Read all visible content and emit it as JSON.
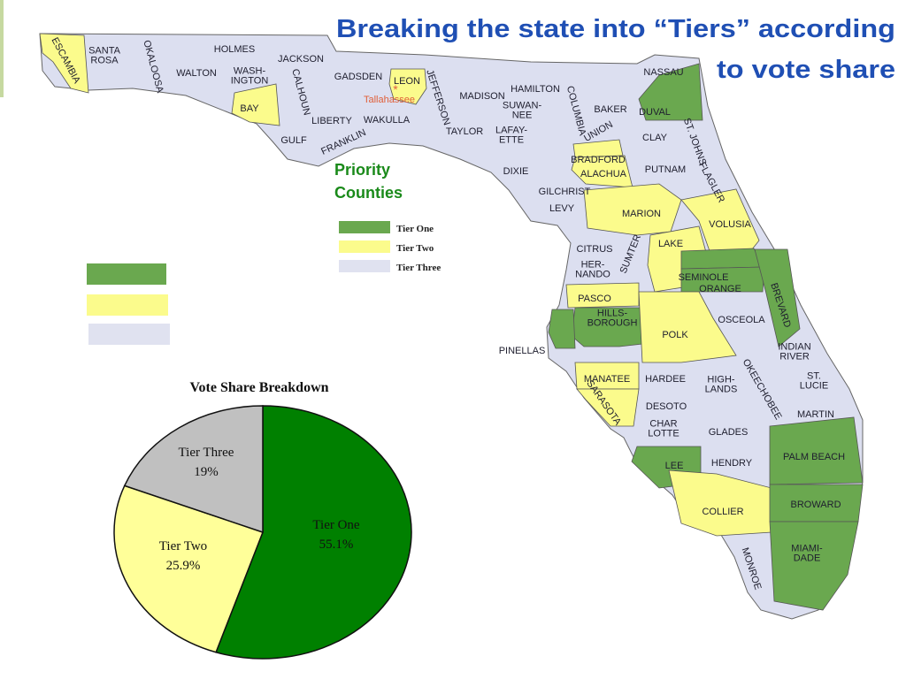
{
  "title": [
    "Breaking the state into “Tiers” according",
    "to vote share"
  ],
  "map": {
    "priority_label": [
      "Priority",
      "Counties"
    ],
    "capital": "Tallahassee",
    "legend": [
      {
        "label": "Tier One",
        "color": "#6aa84f"
      },
      {
        "label": "Tier Two",
        "color": "#fbfb8c"
      },
      {
        "label": "Tier Three",
        "color": "#e0e2f0"
      }
    ],
    "counties": [
      {
        "label": [
          "ESCAMBIA"
        ],
        "tier": 2
      },
      {
        "label": [
          "SANTA",
          "ROSA"
        ],
        "tier": 3
      },
      {
        "label": [
          "OKALOOSA"
        ],
        "tier": 3
      },
      {
        "label": [
          "WALTON"
        ],
        "tier": 3
      },
      {
        "label": [
          "HOLMES"
        ],
        "tier": 3
      },
      {
        "label": [
          "JACKSON"
        ],
        "tier": 3
      },
      {
        "label": [
          "WASH-",
          "INGTON"
        ],
        "tier": 3
      },
      {
        "label": [
          "BAY"
        ],
        "tier": 2
      },
      {
        "label": [
          "CALHOUN"
        ],
        "tier": 3
      },
      {
        "label": [
          "GADSDEN"
        ],
        "tier": 3
      },
      {
        "label": [
          "LEON"
        ],
        "tier": 2
      },
      {
        "label": [
          "LIBERTY"
        ],
        "tier": 3
      },
      {
        "label": [
          "WAKULLA"
        ],
        "tier": 3
      },
      {
        "label": [
          "GULF"
        ],
        "tier": 3
      },
      {
        "label": [
          "FRANKLIN"
        ],
        "tier": 3
      },
      {
        "label": [
          "JEFFERSON"
        ],
        "tier": 3
      },
      {
        "label": [
          "MADISON"
        ],
        "tier": 3
      },
      {
        "label": [
          "HAMILTON"
        ],
        "tier": 3
      },
      {
        "label": [
          "SUWAN-",
          "NEE"
        ],
        "tier": 3
      },
      {
        "label": [
          "TAYLOR"
        ],
        "tier": 3
      },
      {
        "label": [
          "LAFAY-",
          "ETTE"
        ],
        "tier": 3
      },
      {
        "label": [
          "COLUMBIA"
        ],
        "tier": 3
      },
      {
        "label": [
          "BAKER"
        ],
        "tier": 3
      },
      {
        "label": [
          "NASSAU"
        ],
        "tier": 3
      },
      {
        "label": [
          "DUVAL"
        ],
        "tier": 1
      },
      {
        "label": [
          "UNION"
        ],
        "tier": 3
      },
      {
        "label": [
          "CLAY"
        ],
        "tier": 3
      },
      {
        "label": [
          "ST. JOHNS"
        ],
        "tier": 3
      },
      {
        "label": [
          "BRADFORD"
        ],
        "tier": 2
      },
      {
        "label": [
          "ALACHUA"
        ],
        "tier": 2
      },
      {
        "label": [
          "PUTNAM"
        ],
        "tier": 3
      },
      {
        "label": [
          "FLAGLER"
        ],
        "tier": 3
      },
      {
        "label": [
          "DIXIE"
        ],
        "tier": 3
      },
      {
        "label": [
          "GILCHRIST"
        ],
        "tier": 3
      },
      {
        "label": [
          "LEVY"
        ],
        "tier": 3
      },
      {
        "label": [
          "MARION"
        ],
        "tier": 2
      },
      {
        "label": [
          "VOLUSIA"
        ],
        "tier": 2
      },
      {
        "label": [
          "CITRUS"
        ],
        "tier": 3
      },
      {
        "label": [
          "SUMTER"
        ],
        "tier": 3
      },
      {
        "label": [
          "LAKE"
        ],
        "tier": 2
      },
      {
        "label": [
          "HER-",
          "NANDO"
        ],
        "tier": 3
      },
      {
        "label": [
          "SEMINOLE"
        ],
        "tier": 1
      },
      {
        "label": [
          "ORANGE"
        ],
        "tier": 1
      },
      {
        "label": [
          "BREVARD"
        ],
        "tier": 1
      },
      {
        "label": [
          "PASCO"
        ],
        "tier": 2
      },
      {
        "label": [
          "HILLS-",
          "BOROUGH"
        ],
        "tier": 1
      },
      {
        "label": [
          "PINELLAS"
        ],
        "tier": 1
      },
      {
        "label": [
          "POLK"
        ],
        "tier": 2
      },
      {
        "label": [
          "OSCEOLA"
        ],
        "tier": 3
      },
      {
        "label": [
          "INDIAN",
          "RIVER"
        ],
        "tier": 3
      },
      {
        "label": [
          "MANATEE"
        ],
        "tier": 2
      },
      {
        "label": [
          "SARASOTA"
        ],
        "tier": 2
      },
      {
        "label": [
          "HARDEE"
        ],
        "tier": 3
      },
      {
        "label": [
          "HIGH-",
          "LANDS"
        ],
        "tier": 3
      },
      {
        "label": [
          "OKEECHOBEE"
        ],
        "tier": 3
      },
      {
        "label": [
          "ST.",
          "LUCIE"
        ],
        "tier": 3
      },
      {
        "label": [
          "DESOTO"
        ],
        "tier": 3
      },
      {
        "label": [
          "MARTIN"
        ],
        "tier": 3
      },
      {
        "label": [
          "CHAR",
          "LOTTE"
        ],
        "tier": 3
      },
      {
        "label": [
          "GLADES"
        ],
        "tier": 3
      },
      {
        "label": [
          "LEE"
        ],
        "tier": 1
      },
      {
        "label": [
          "HENDRY"
        ],
        "tier": 3
      },
      {
        "label": [
          "PALM BEACH"
        ],
        "tier": 1
      },
      {
        "label": [
          "COLLIER"
        ],
        "tier": 2
      },
      {
        "label": [
          "BROWARD"
        ],
        "tier": 1
      },
      {
        "label": [
          "MIAMI-",
          "DADE"
        ],
        "tier": 1
      },
      {
        "label": [
          "MONROE"
        ],
        "tier": 3
      }
    ]
  },
  "chart_data": {
    "type": "pie",
    "title": "Vote Share Breakdown",
    "categories": [
      "Tier One",
      "Tier Two",
      "Tier Three"
    ],
    "values": [
      55.1,
      25.9,
      19
    ],
    "value_labels": [
      "55.1%",
      "25.9%",
      "19%"
    ],
    "colors": [
      "#008000",
      "#ffff99",
      "#c0c0c0"
    ]
  }
}
